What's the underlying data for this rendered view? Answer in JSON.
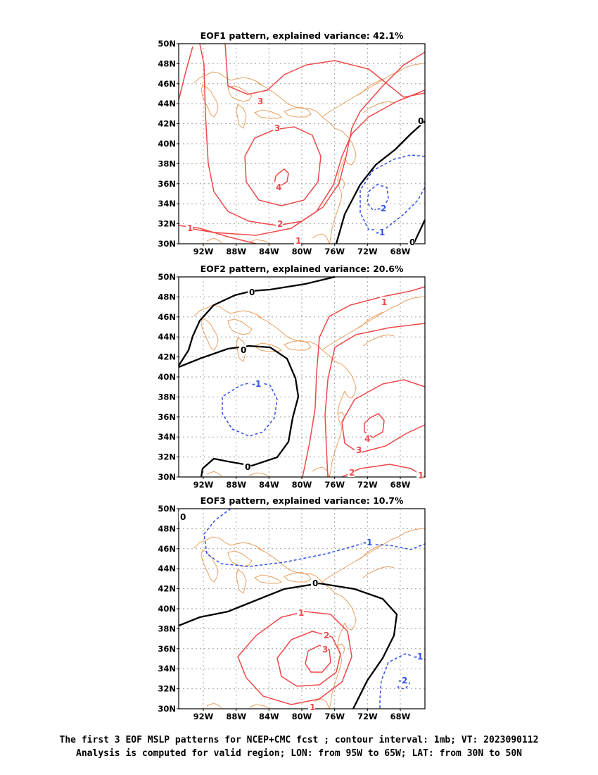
{
  "panels": [
    {
      "title": "EOF1 pattern, explained variance: 42.1%",
      "contour_labels": [
        "3",
        "3",
        "4",
        "2",
        "1",
        "1",
        "0",
        "0",
        "-1",
        "-2"
      ]
    },
    {
      "title": "EOF2 pattern, explained variance: 20.6%",
      "contour_labels": [
        "0",
        "0",
        "0",
        "-1",
        "1",
        "4",
        "3",
        "2",
        "1"
      ]
    },
    {
      "title": "EOF3 pattern, explained variance: 10.7%",
      "contour_labels": [
        "0",
        "0",
        "1",
        "2",
        "3",
        "1",
        "-1",
        "-1",
        "-2"
      ]
    }
  ],
  "lat_ticks": [
    "50N",
    "48N",
    "46N",
    "44N",
    "42N",
    "40N",
    "38N",
    "36N",
    "34N",
    "32N",
    "30N"
  ],
  "lon_ticks": [
    "92W",
    "88W",
    "84W",
    "80W",
    "76W",
    "72W",
    "68W"
  ],
  "caption": {
    "line1": "The first 3 EOF MSLP patterns for NCEP+CMC fcst ; contour interval: 1mb; VT: 2023090112",
    "line2": "Analysis is computed for valid region; LON: from 95W to 65W; LAT: from 30N to 50N"
  },
  "colors": {
    "positive": "#f04848",
    "negative": "#3050e8",
    "zero": "#000000",
    "coastline": "#e8a060",
    "grid": "#a0a0a0"
  }
}
